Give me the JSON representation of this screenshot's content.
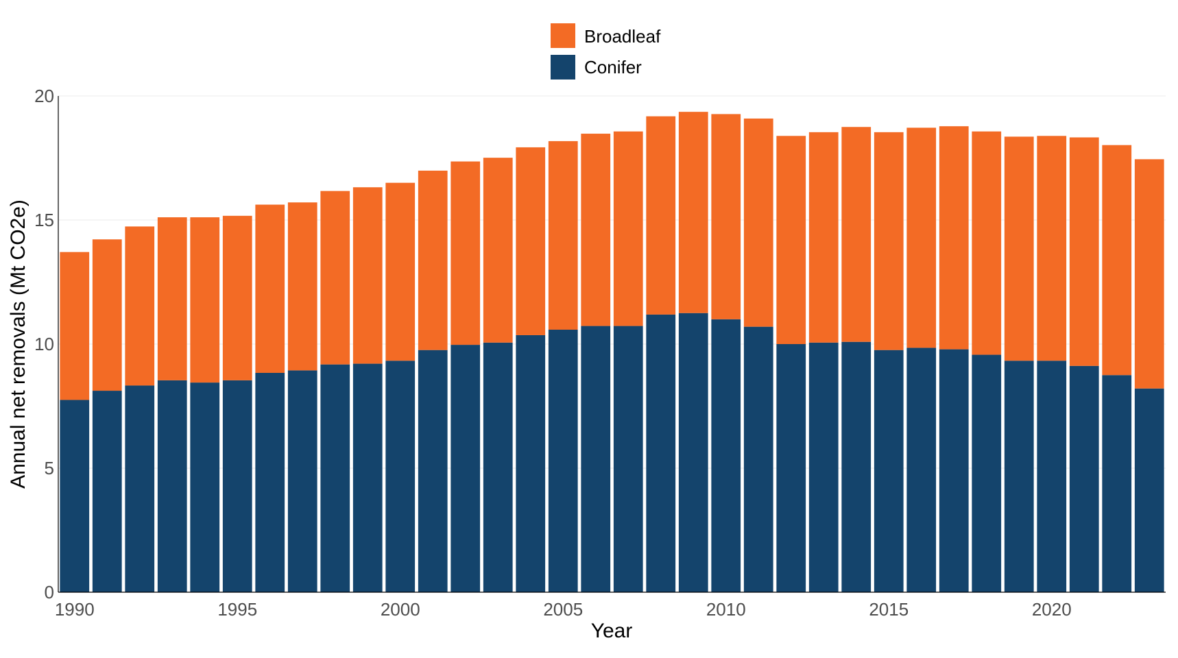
{
  "chart_data": {
    "type": "bar",
    "stacked": true,
    "title": "",
    "xlabel": "Year",
    "ylabel": "Annual net removals (Mt CO2e)",
    "ylim": [
      0,
      20
    ],
    "yticks": [
      0,
      5,
      10,
      15,
      20
    ],
    "xticks": [
      1990,
      1995,
      2000,
      2005,
      2010,
      2015,
      2020
    ],
    "grid": true,
    "legend_position": "top-center",
    "categories": [
      1990,
      1991,
      1992,
      1993,
      1994,
      1995,
      1996,
      1997,
      1998,
      1999,
      2000,
      2001,
      2002,
      2003,
      2004,
      2005,
      2006,
      2007,
      2008,
      2009,
      2010,
      2011,
      2012,
      2013,
      2014,
      2015,
      2016,
      2017,
      2018,
      2019,
      2020,
      2021,
      2022,
      2023
    ],
    "series": [
      {
        "name": "Conifer",
        "color": "#14446C",
        "values": [
          7.75,
          8.12,
          8.33,
          8.54,
          8.45,
          8.54,
          8.84,
          8.94,
          9.18,
          9.21,
          9.33,
          9.76,
          9.97,
          10.06,
          10.36,
          10.58,
          10.73,
          10.73,
          11.19,
          11.25,
          11.0,
          10.7,
          10.0,
          10.06,
          10.09,
          9.76,
          9.85,
          9.79,
          9.57,
          9.33,
          9.33,
          9.12,
          8.75,
          8.21
        ]
      },
      {
        "name": "Broadleaf",
        "color": "#F36B25",
        "values": [
          5.96,
          6.1,
          6.41,
          6.57,
          6.66,
          6.63,
          6.78,
          6.77,
          6.99,
          7.11,
          7.17,
          7.23,
          7.39,
          7.45,
          7.57,
          7.6,
          7.75,
          7.84,
          7.99,
          8.11,
          8.27,
          8.39,
          8.39,
          8.48,
          8.66,
          8.78,
          8.87,
          8.99,
          9.0,
          9.03,
          9.06,
          9.21,
          9.27,
          9.24
        ]
      }
    ],
    "legend": [
      "Broadleaf",
      "Conifer"
    ]
  }
}
